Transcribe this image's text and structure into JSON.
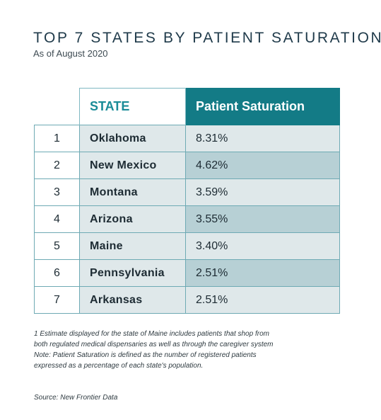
{
  "title": "TOP 7 STATES BY PATIENT SATURATION",
  "subtitle": "As of August 2020",
  "chart_data": {
    "type": "table",
    "columns": [
      "",
      "STATE",
      "Patient Saturation"
    ],
    "rows": [
      {
        "rank": "1",
        "state": "Oklahoma",
        "value": "8.31%"
      },
      {
        "rank": "2",
        "state": "New Mexico",
        "value": "4.62%"
      },
      {
        "rank": "3",
        "state": "Montana",
        "value": "3.59%"
      },
      {
        "rank": "4",
        "state": "Arizona",
        "value": "3.55%"
      },
      {
        "rank": "5",
        "state": "Maine",
        "value": "3.40%"
      },
      {
        "rank": "6",
        "state": "Pennsylvania",
        "value": "2.51%"
      },
      {
        "rank": "7",
        "state": "Arkansas",
        "value": "2.51%"
      }
    ]
  },
  "notes": [
    "1 Estimate displayed for the state of Maine includes patients that shop from",
    "both regulated medical dispensaries as well as through the caregiver system",
    "Note: Patient Saturation is defined as the number of registered patients",
    "expressed as a percentage of each state's population."
  ],
  "source": "Source: New Frontier Data",
  "colors": {
    "header_fill": "#137b86",
    "state_header_text": "#1a8c98",
    "row_light": "#dfe8ea",
    "row_dark": "#b7d0d5",
    "border": "#6eaab4"
  }
}
